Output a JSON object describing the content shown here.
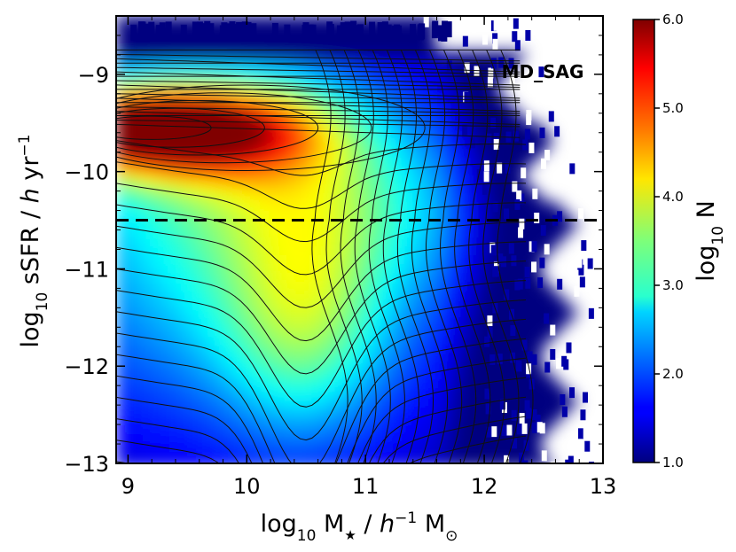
{
  "chart_data": {
    "type": "heatmap",
    "title": "",
    "annotation": "MD_SAG",
    "xlabel": {
      "base": "log",
      "sub": "10",
      "rest": " M",
      "star": "★",
      "unit_pre": " / ",
      "h": "h",
      "sup": "−1",
      "unit_post": " M",
      "sun": "⊙"
    },
    "ylabel": {
      "base": "log",
      "sub": "10",
      "rest": " sSFR / ",
      "h": "h",
      "unit": " yr",
      "sup": "−1"
    },
    "colorbar_label": {
      "base": "log",
      "sub": "10",
      "rest": " N"
    },
    "xlim": [
      8.9,
      13
    ],
    "ylim": [
      -13,
      -8.4
    ],
    "x_ticks": [
      9,
      10,
      11,
      12,
      13
    ],
    "x_tick_labels": [
      "9",
      "10",
      "11",
      "12",
      "13"
    ],
    "y_ticks": [
      -9,
      -10,
      -11,
      -12,
      -13
    ],
    "y_tick_labels": [
      "−9",
      "−10",
      "−11",
      "−12",
      "−13"
    ],
    "colorbar_range": [
      1.0,
      6.0
    ],
    "colorbar_ticks": [
      1.0,
      2.0,
      3.0,
      4.0,
      5.0,
      6.0
    ],
    "colorbar_tick_labels": [
      "1.0",
      "2.0",
      "3.0",
      "4.0",
      "5.0",
      "6.0"
    ],
    "colormap": "jet",
    "reference_line": {
      "y": -10.5,
      "style": "dashed",
      "color": "#000000"
    },
    "density_features": {
      "star_forming_peak": {
        "x": 9.2,
        "y": -9.55,
        "log10_N": 5.9
      },
      "passive_valley": {
        "x": 10.5,
        "y": -11.5,
        "log10_N": 3.9
      },
      "high_mass_edge_x": 12.6
    }
  }
}
